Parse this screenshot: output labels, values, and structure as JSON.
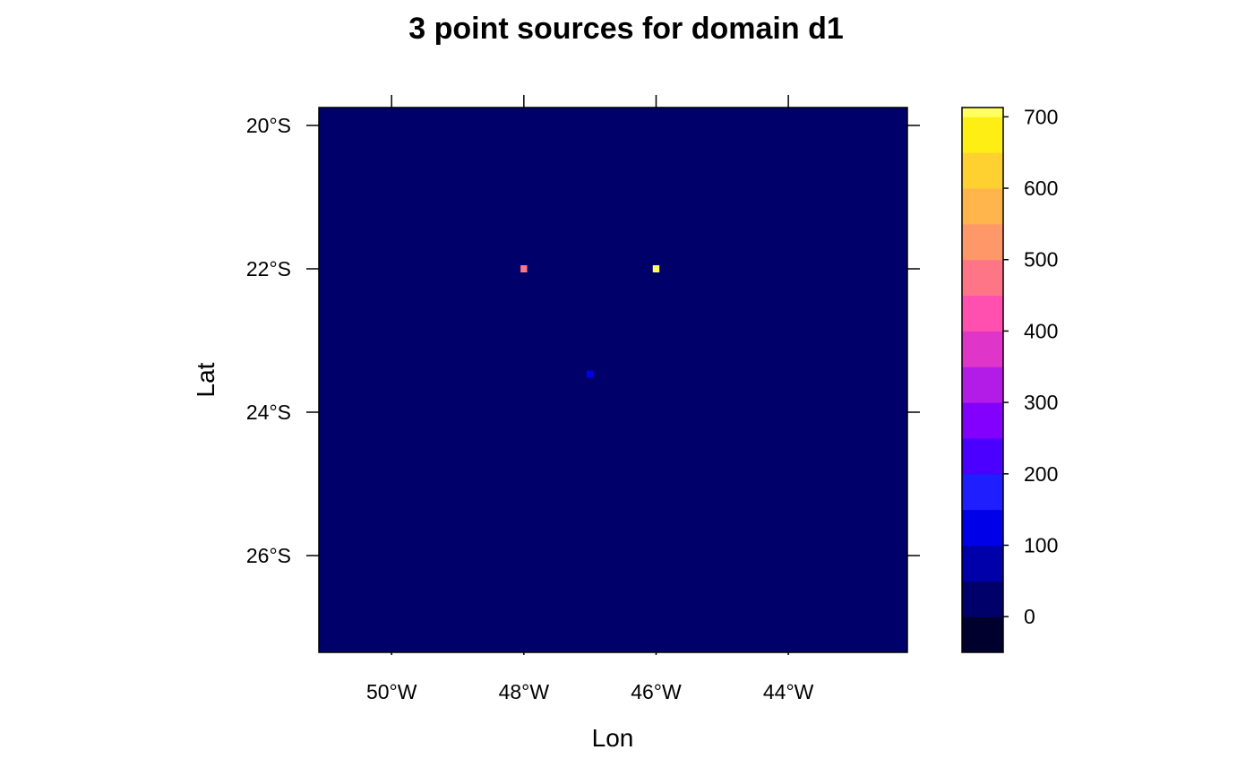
{
  "chart_data": {
    "type": "heatmap",
    "title": "3 point sources for domain d1",
    "xlabel": "Lon",
    "ylabel": "Lat",
    "xlim": [
      -51.1,
      -42.2
    ],
    "ylim": [
      -27.35,
      -19.75
    ],
    "x_ticks": [
      {
        "value": -50,
        "label": "50°W"
      },
      {
        "value": -48,
        "label": "48°W"
      },
      {
        "value": -46,
        "label": "46°W"
      },
      {
        "value": -44,
        "label": "44°W"
      }
    ],
    "y_ticks": [
      {
        "value": -20,
        "label": "20°S"
      },
      {
        "value": -22,
        "label": "22°S"
      },
      {
        "value": -24,
        "label": "24°S"
      },
      {
        "value": -26,
        "label": "26°S"
      }
    ],
    "background_value": 0,
    "cell_size_deg": 0.1,
    "points": [
      {
        "lon": -48.0,
        "lat": -22.0,
        "value": 450
      },
      {
        "lon": -46.0,
        "lat": -22.0,
        "value": 700
      },
      {
        "lon": -47.0,
        "lat": -23.47,
        "value": 100
      }
    ],
    "colorbar": {
      "range": [
        -50,
        713
      ],
      "ticks": [
        0,
        100,
        200,
        300,
        400,
        500,
        600,
        700
      ],
      "tick_labels": [
        "0",
        "100",
        "200",
        "300",
        "400",
        "500",
        "600",
        "700"
      ],
      "bins": [
        {
          "from": -50,
          "to": 0,
          "color": "#00002E"
        },
        {
          "from": 0,
          "to": 50,
          "color": "#00006B"
        },
        {
          "from": 50,
          "to": 100,
          "color": "#0000AA"
        },
        {
          "from": 100,
          "to": 150,
          "color": "#0000E8"
        },
        {
          "from": 150,
          "to": 200,
          "color": "#1E1EFF"
        },
        {
          "from": 200,
          "to": 250,
          "color": "#4B00FF"
        },
        {
          "from": 250,
          "to": 300,
          "color": "#8300FF"
        },
        {
          "from": 300,
          "to": 350,
          "color": "#B31CE6"
        },
        {
          "from": 350,
          "to": 400,
          "color": "#DF35C8"
        },
        {
          "from": 400,
          "to": 450,
          "color": "#FF4FAF"
        },
        {
          "from": 450,
          "to": 500,
          "color": "#FF7588"
        },
        {
          "from": 500,
          "to": 550,
          "color": "#FF9869"
        },
        {
          "from": 550,
          "to": 600,
          "color": "#FFB44C"
        },
        {
          "from": 600,
          "to": 650,
          "color": "#FFD130"
        },
        {
          "from": 650,
          "to": 700,
          "color": "#FFEE14"
        },
        {
          "from": 700,
          "to": 713,
          "color": "#FFFF60"
        }
      ]
    }
  }
}
